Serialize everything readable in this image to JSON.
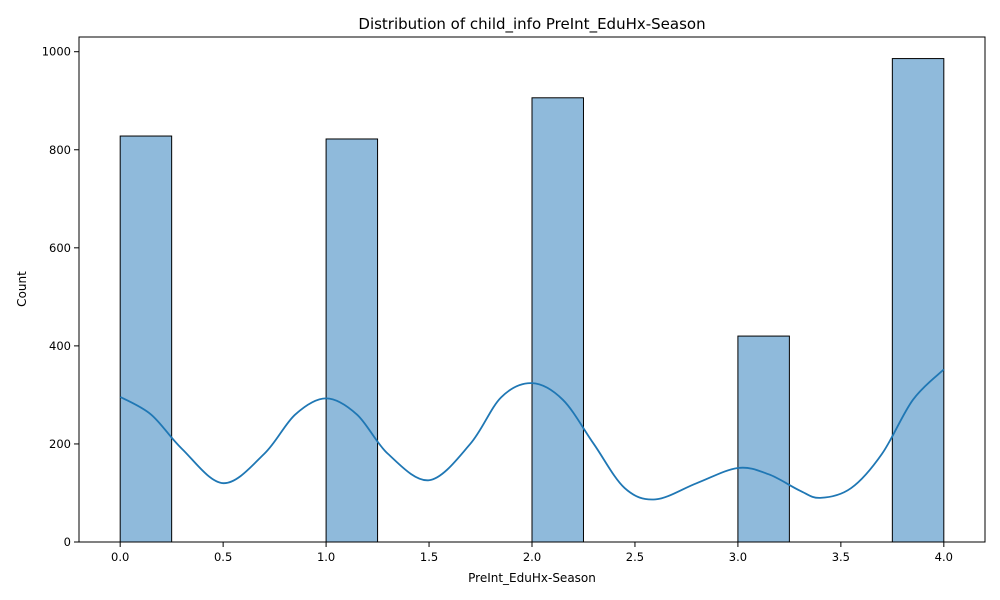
{
  "chart_data": {
    "type": "bar",
    "title": "Distribution of child_info PreInt_EduHx-Season",
    "xlabel": "PreInt_EduHx-Season",
    "ylabel": "Count",
    "xlim": [
      -0.2,
      4.2
    ],
    "ylim": [
      0,
      1030
    ],
    "xticks": [
      0.0,
      0.5,
      1.0,
      1.5,
      2.0,
      2.5,
      3.0,
      3.5,
      4.0
    ],
    "xtick_labels": [
      "0.0",
      "0.5",
      "1.0",
      "1.5",
      "2.0",
      "2.5",
      "3.0",
      "3.5",
      "4.0"
    ],
    "yticks": [
      0,
      200,
      400,
      600,
      800,
      1000
    ],
    "ytick_labels": [
      "0",
      "200",
      "400",
      "600",
      "800",
      "1000"
    ],
    "bin_width": 0.25,
    "bars": [
      {
        "x_start": 0.0,
        "x_end": 0.25,
        "count": 828
      },
      {
        "x_start": 1.0,
        "x_end": 1.25,
        "count": 822
      },
      {
        "x_start": 2.0,
        "x_end": 2.25,
        "count": 906
      },
      {
        "x_start": 3.0,
        "x_end": 3.25,
        "count": 420
      },
      {
        "x_start": 3.75,
        "x_end": 4.0,
        "count": 986
      }
    ],
    "kde": {
      "x": [
        0.0,
        0.15,
        0.3,
        0.5,
        0.7,
        0.85,
        1.0,
        1.15,
        1.3,
        1.5,
        1.7,
        1.85,
        2.0,
        2.15,
        2.3,
        2.45,
        2.6,
        2.8,
        3.0,
        3.15,
        3.3,
        3.4,
        3.55,
        3.7,
        3.85,
        4.0
      ],
      "y": [
        296,
        260,
        190,
        120,
        180,
        260,
        293,
        260,
        180,
        126,
        200,
        295,
        324,
        290,
        200,
        110,
        87,
        120,
        151,
        138,
        105,
        90,
        110,
        180,
        290,
        352
      ]
    },
    "colors": {
      "bar_fill": "#8fbadb",
      "bar_edge": "#000000",
      "kde_line": "#1f77b4"
    },
    "grid": false
  }
}
